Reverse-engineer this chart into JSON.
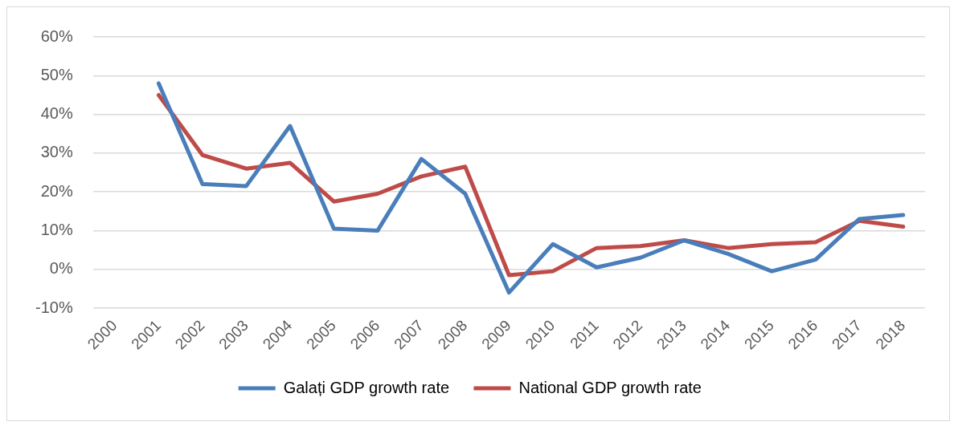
{
  "chart_data": {
    "type": "line",
    "categories": [
      "2000",
      "2001",
      "2002",
      "2003",
      "2004",
      "2005",
      "2006",
      "2007",
      "2008",
      "2009",
      "2010",
      "2011",
      "2012",
      "2013",
      "2014",
      "2015",
      "2016",
      "2017",
      "2018"
    ],
    "series": [
      {
        "name": "Galați GDP growth rate",
        "color": "#4a7ebb",
        "values": [
          null,
          48,
          22,
          21.5,
          37,
          10.5,
          10,
          28.5,
          19.5,
          -6,
          6.5,
          0.5,
          3,
          7.5,
          4,
          -0.5,
          2.5,
          13,
          14
        ]
      },
      {
        "name": "National GDP growth rate",
        "color": "#be4b48",
        "values": [
          null,
          45,
          29.5,
          26,
          27.5,
          17.5,
          19.5,
          24,
          26.5,
          -1.5,
          -0.5,
          5.5,
          6,
          7.5,
          5.5,
          6.5,
          7,
          12.5,
          11
        ]
      }
    ],
    "ylim": [
      -10,
      60
    ],
    "yticks": [
      {
        "value": -10,
        "label": "-10%"
      },
      {
        "value": 0,
        "label": "0%"
      },
      {
        "value": 10,
        "label": "10%"
      },
      {
        "value": 20,
        "label": "20%"
      },
      {
        "value": 30,
        "label": "30%"
      },
      {
        "value": 40,
        "label": "40%"
      },
      {
        "value": 50,
        "label": "50%"
      },
      {
        "value": 60,
        "label": "60%"
      }
    ],
    "grid": "y",
    "legend": "bottom",
    "marker": "none",
    "line_style": "solid"
  }
}
